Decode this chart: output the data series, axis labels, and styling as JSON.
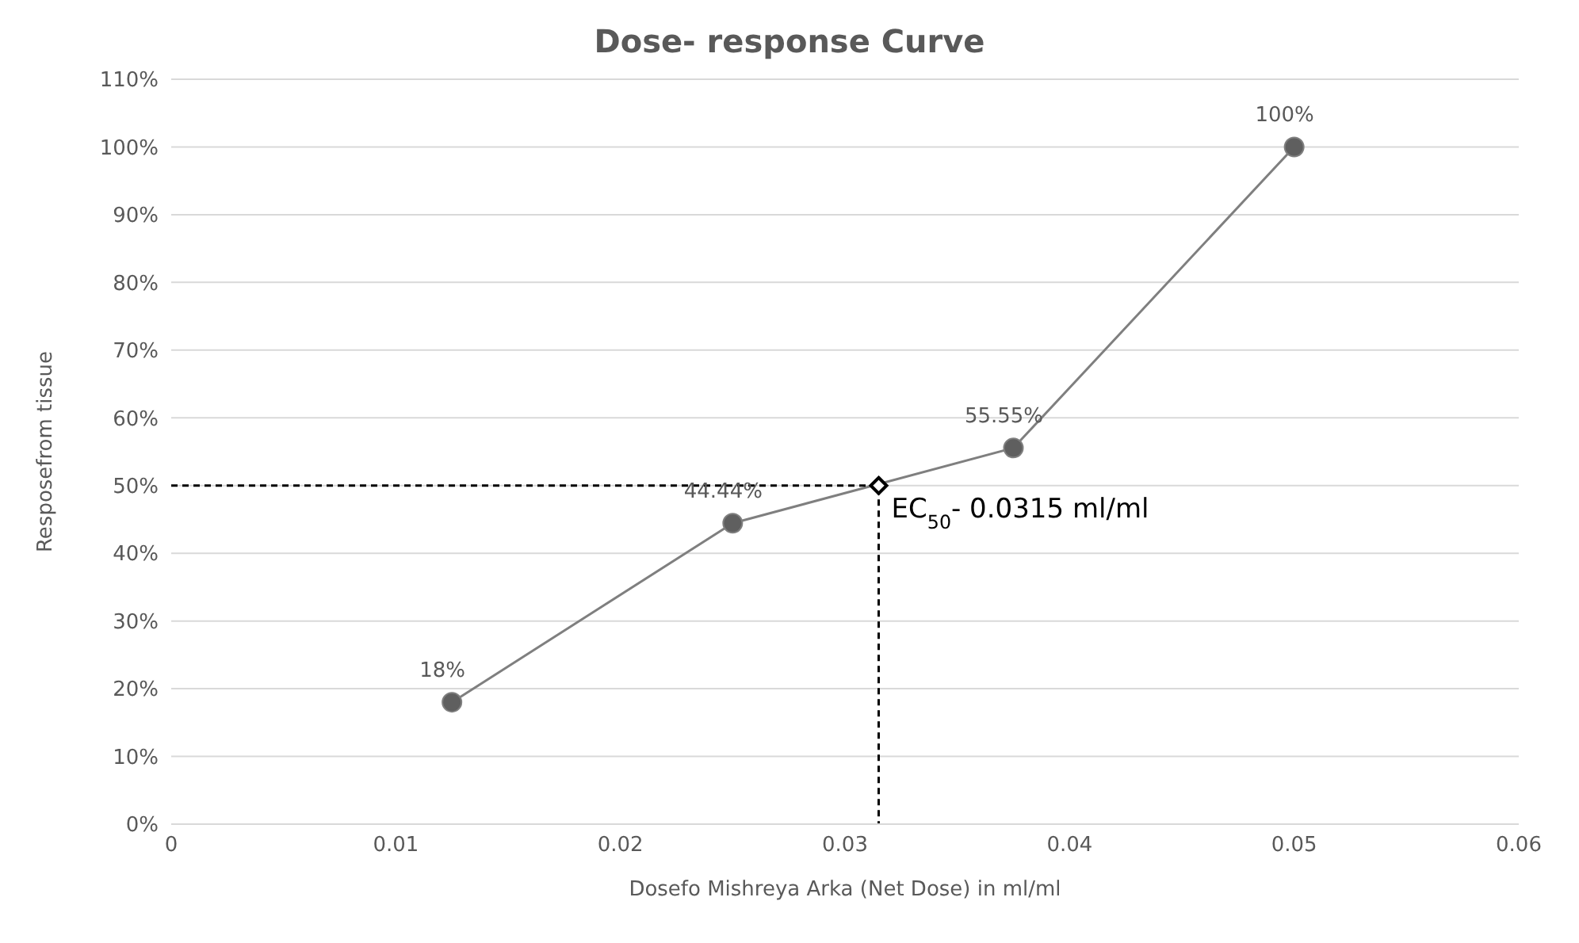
{
  "chart_data": {
    "type": "line",
    "title": "Dose- response Curve",
    "xlabel": "Dosefo Mishreya Arka (Net Dose) in ml/ml",
    "ylabel": "Resposefrom tissue",
    "series": [
      {
        "color": "#7f7f7f",
        "x": [
          0.0125,
          0.025,
          0.0375,
          0.05
        ],
        "values": [
          18,
          44.44,
          55.55,
          100
        ],
        "value_labels": [
          "18%",
          "44.44%",
          "55.55%",
          "100%"
        ],
        "marker": "circle",
        "line_style": "solid"
      },
      {
        "type": "line",
        "color": "#000000",
        "x": [
          0,
          0.0315,
          0.0315
        ],
        "values": [
          50,
          50,
          0
        ],
        "marker": "none",
        "line_style": "dashed"
      },
      {
        "type": "scatter",
        "color": "#000000",
        "x": [
          0.0315
        ],
        "values": [
          50
        ],
        "marker": "diamond"
      }
    ],
    "annotations": [
      {
        "text": "EC$_{50}$- 0.0315 ml/ml",
        "x": 0.0315,
        "y": 50
      }
    ],
    "xlim": [
      0,
      0.06
    ],
    "xticks": [
      0,
      0.01,
      0.02,
      0.03,
      0.04,
      0.05,
      0.06
    ],
    "ylim": [
      0,
      110
    ],
    "yticks": [
      {
        "value": 0,
        "label": "0%"
      },
      {
        "value": 10,
        "label": "10%"
      },
      {
        "value": 20,
        "label": "20%"
      },
      {
        "value": 30,
        "label": "30%"
      },
      {
        "value": 40,
        "label": "40%"
      },
      {
        "value": 50,
        "label": "50%"
      },
      {
        "value": 60,
        "label": "60%"
      },
      {
        "value": 70,
        "label": "70%"
      },
      {
        "value": 80,
        "label": "80%"
      },
      {
        "value": 90,
        "label": "90%"
      },
      {
        "value": 100,
        "label": "100%"
      },
      {
        "value": 110,
        "label": "110%"
      }
    ],
    "grid": "y",
    "legend": false
  }
}
